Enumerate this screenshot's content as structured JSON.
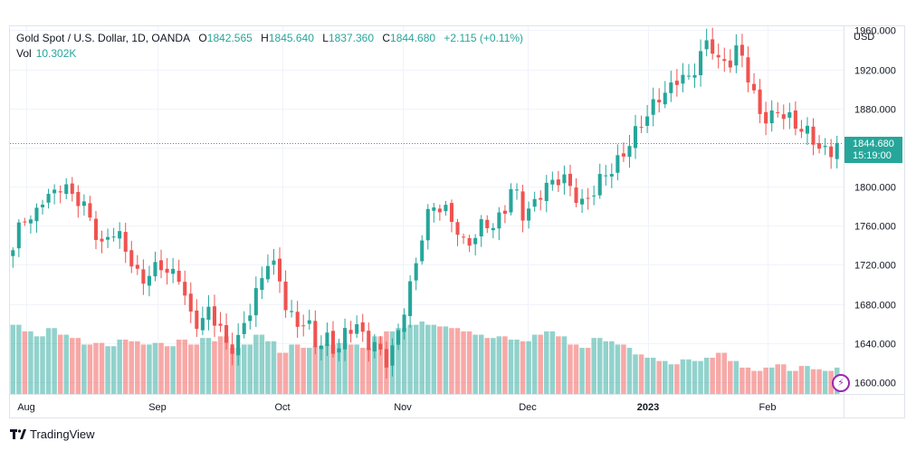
{
  "legend": {
    "symbol": "Gold Spot / U.S. Dollar, 1D, OANDA",
    "open_label": "O",
    "open": "1842.565",
    "high_label": "H",
    "high": "1845.640",
    "low_label": "L",
    "low": "1837.360",
    "close_label": "C",
    "close": "1844.680",
    "change": "+2.115 (+0.11%)",
    "vol_label": "Vol",
    "vol": "10.302K"
  },
  "currency": "USD",
  "price_badge": {
    "price": "1844.680",
    "countdown": "15:19:00"
  },
  "footer": {
    "brand": "TradingView"
  },
  "colors": {
    "up": "#26a69a",
    "down": "#ef5350",
    "up_volume": "#26a69a",
    "down_volume": "#ef5350"
  },
  "icons": {
    "logo": "tradingview-logo-icon",
    "replay": "lightning-icon"
  },
  "chart_data": {
    "type": "candlestick",
    "y_axis_ticks": [
      "1600.000",
      "1640.000",
      "1680.000",
      "1720.000",
      "1760.000",
      "1800.000",
      "1840.000",
      "1880.000",
      "1920.000",
      "1960.000"
    ],
    "y_axis_tick_values": [
      1600,
      1640,
      1680,
      1720,
      1760,
      1800,
      1840,
      1880,
      1920,
      1960
    ],
    "x_axis_labels": [
      "Aug",
      "Sep",
      "Oct",
      "Nov",
      "Dec",
      "2023",
      "Feb"
    ],
    "ylim": [
      1588,
      1964
    ],
    "last_price": 1844.68,
    "grid": true,
    "series": [
      {
        "name": "Gold Spot / U.S. Dollar",
        "waypoints_close": [
          1735,
          1768,
          1760,
          1790,
          1795,
          1805,
          1788,
          1780,
          1765,
          1740,
          1760,
          1745,
          1720,
          1700,
          1715,
          1725,
          1710,
          1705,
          1665,
          1660,
          1678,
          1660,
          1628,
          1640,
          1670,
          1700,
          1728,
          1712,
          1665,
          1658,
          1665,
          1640,
          1645,
          1625,
          1650,
          1660,
          1645,
          1640,
          1618,
          1635,
          1680,
          1720,
          1770,
          1780,
          1772,
          1760,
          1742,
          1752,
          1765,
          1755,
          1770,
          1805,
          1775,
          1782,
          1795,
          1800,
          1810,
          1800,
          1785,
          1792,
          1805,
          1815,
          1832,
          1852,
          1865,
          1875,
          1890,
          1900,
          1920,
          1910,
          1932,
          1946,
          1925,
          1930,
          1948,
          1910,
          1872,
          1865,
          1880,
          1875,
          1862,
          1852,
          1838,
          1834,
          1845
        ]
      }
    ],
    "volume_bars": [
      {
        "value": 42
      },
      {
        "value": 38
      },
      {
        "value": 35
      },
      {
        "value": 40
      },
      {
        "value": 36
      },
      {
        "value": 34
      },
      {
        "value": 30
      },
      {
        "value": 31
      },
      {
        "value": 29
      },
      {
        "value": 33
      },
      {
        "value": 32
      },
      {
        "value": 30
      },
      {
        "value": 31
      },
      {
        "value": 29
      },
      {
        "value": 33
      },
      {
        "value": 30
      },
      {
        "value": 34
      },
      {
        "value": 32
      },
      {
        "value": 35
      },
      {
        "value": 28
      },
      {
        "value": 30
      },
      {
        "value": 36
      },
      {
        "value": 32
      },
      {
        "value": 25
      },
      {
        "value": 30
      },
      {
        "value": 28
      },
      {
        "value": 29
      },
      {
        "value": 30
      },
      {
        "value": 31
      },
      {
        "value": 30
      },
      {
        "value": 28
      },
      {
        "value": 35
      },
      {
        "value": 38
      },
      {
        "value": 40
      },
      {
        "value": 42
      },
      {
        "value": 44
      },
      {
        "value": 42
      },
      {
        "value": 41
      },
      {
        "value": 40
      },
      {
        "value": 38
      },
      {
        "value": 36
      },
      {
        "value": 34
      },
      {
        "value": 35
      },
      {
        "value": 33
      },
      {
        "value": 32
      },
      {
        "value": 36
      },
      {
        "value": 38
      },
      {
        "value": 35
      },
      {
        "value": 30
      },
      {
        "value": 28
      },
      {
        "value": 34
      },
      {
        "value": 32
      },
      {
        "value": 30
      },
      {
        "value": 28
      },
      {
        "value": 24
      },
      {
        "value": 22
      },
      {
        "value": 20
      },
      {
        "value": 18
      },
      {
        "value": 21
      },
      {
        "value": 20
      },
      {
        "value": 22
      },
      {
        "value": 25
      },
      {
        "value": 20
      },
      {
        "value": 16
      },
      {
        "value": 14
      },
      {
        "value": 16
      },
      {
        "value": 18
      },
      {
        "value": 14
      },
      {
        "value": 17
      },
      {
        "value": 15
      },
      {
        "value": 14
      },
      {
        "value": 16
      }
    ]
  }
}
